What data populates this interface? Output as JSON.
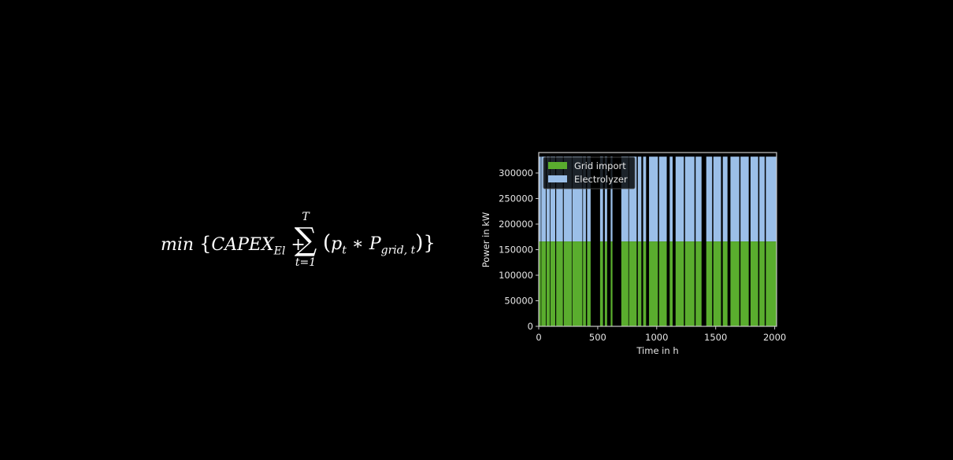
{
  "formula": {
    "min": "min",
    "open": "{",
    "capex": "CAPEX",
    "capex_sub": "El",
    "plus": "+",
    "sum_upper": "T",
    "sum_symbol": "∑",
    "sum_lower": "t=1",
    "open_paren": "(",
    "p": "p",
    "p_sub": "t",
    "times": "∗",
    "P": "P",
    "P_sub": "grid, t",
    "close_paren": ")",
    "close": "}"
  },
  "chart_data": {
    "type": "area",
    "xlabel": "Time in h",
    "ylabel": "Power in kW",
    "xlim": [
      0,
      2016
    ],
    "ylim": [
      0,
      340000
    ],
    "x_ticks": [
      0,
      500,
      1000,
      1500,
      2000
    ],
    "x_tick_labels": [
      "0",
      "500",
      "1000",
      "1500",
      "2000"
    ],
    "y_ticks": [
      0,
      50000,
      100000,
      150000,
      200000,
      250000,
      300000
    ],
    "y_tick_labels": [
      "0",
      "50000",
      "100000",
      "150000",
      "200000",
      "250000",
      "300000"
    ],
    "legend_position": "top-left",
    "grid": false,
    "series": [
      {
        "name": "Grid import",
        "color": "#5aad2e",
        "level": 166000,
        "on_intervals": [
          [
            0,
            18
          ],
          [
            22,
            60
          ],
          [
            66,
            95
          ],
          [
            100,
            140
          ],
          [
            148,
            205
          ],
          [
            212,
            280
          ],
          [
            285,
            370
          ],
          [
            375,
            400
          ],
          [
            410,
            440
          ],
          [
            520,
            545
          ],
          [
            560,
            580
          ],
          [
            610,
            625
          ],
          [
            700,
            760
          ],
          [
            765,
            830
          ],
          [
            840,
            870
          ],
          [
            885,
            910
          ],
          [
            935,
            1010
          ],
          [
            1020,
            1085
          ],
          [
            1110,
            1135
          ],
          [
            1160,
            1230
          ],
          [
            1240,
            1320
          ],
          [
            1330,
            1380
          ],
          [
            1420,
            1470
          ],
          [
            1480,
            1545
          ],
          [
            1560,
            1600
          ],
          [
            1625,
            1700
          ],
          [
            1710,
            1780
          ],
          [
            1795,
            1860
          ],
          [
            1870,
            1915
          ],
          [
            1925,
            2016
          ]
        ]
      },
      {
        "name": "Electrolyzer",
        "color": "#9bbfe8",
        "level": 332000,
        "on_intervals": [
          [
            0,
            18
          ],
          [
            22,
            60
          ],
          [
            66,
            95
          ],
          [
            100,
            140
          ],
          [
            148,
            205
          ],
          [
            212,
            280
          ],
          [
            285,
            370
          ],
          [
            375,
            400
          ],
          [
            410,
            440
          ],
          [
            520,
            545
          ],
          [
            560,
            580
          ],
          [
            610,
            625
          ],
          [
            700,
            760
          ],
          [
            765,
            830
          ],
          [
            840,
            870
          ],
          [
            885,
            910
          ],
          [
            935,
            1010
          ],
          [
            1020,
            1085
          ],
          [
            1110,
            1135
          ],
          [
            1160,
            1230
          ],
          [
            1240,
            1320
          ],
          [
            1330,
            1380
          ],
          [
            1420,
            1470
          ],
          [
            1480,
            1545
          ],
          [
            1560,
            1600
          ],
          [
            1625,
            1700
          ],
          [
            1710,
            1780
          ],
          [
            1795,
            1860
          ],
          [
            1870,
            1915
          ],
          [
            1925,
            2016
          ]
        ]
      }
    ]
  }
}
